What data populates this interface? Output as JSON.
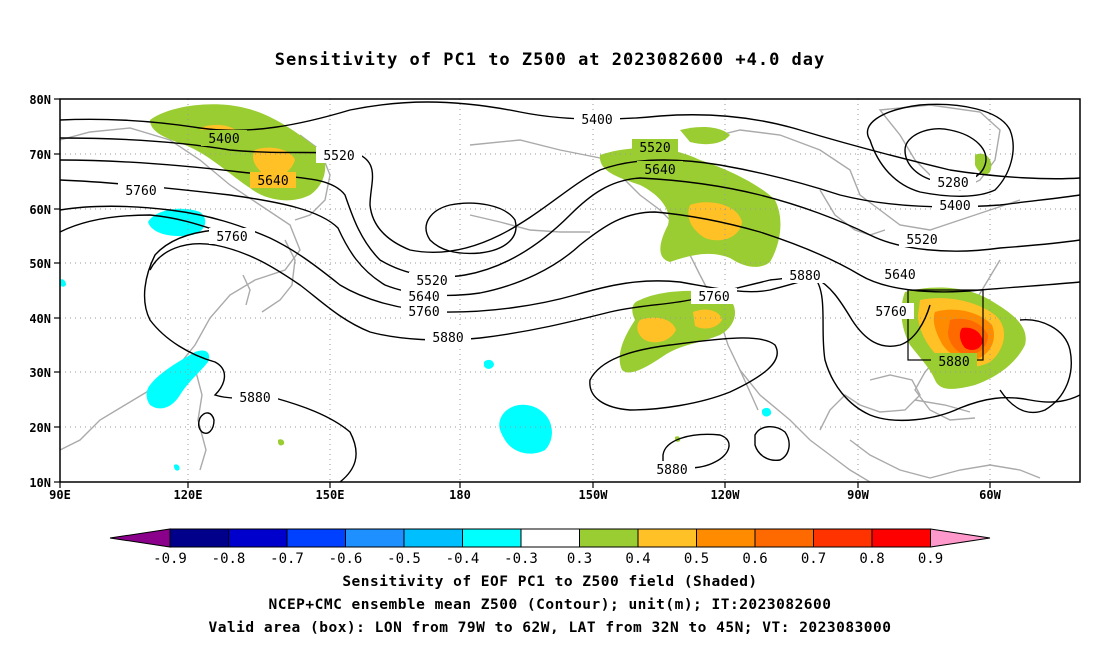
{
  "title": "Sensitivity of PC1 to Z500 at 2023082600 +4.0 day",
  "map": {
    "lon_labels": [
      "90E",
      "120E",
      "150E",
      "180",
      "150W",
      "120W",
      "90W",
      "60W"
    ],
    "lat_labels": [
      "80N",
      "70N",
      "60N",
      "50N",
      "40N",
      "30N",
      "20N",
      "10N"
    ],
    "extent": {
      "lon_min": 90,
      "lon_max": 330,
      "lat_min": 10,
      "lat_max": 80
    },
    "contour_labels": [
      "5400",
      "5520",
      "5640",
      "5760",
      "5760",
      "5400",
      "5520",
      "5640",
      "5280",
      "5400",
      "5520",
      "5640",
      "5760",
      "5880",
      "5520",
      "5640",
      "5760",
      "5760",
      "5880",
      "5880",
      "5880",
      "5880"
    ],
    "valid_box": {
      "lon_w": -79,
      "lon_e": -62,
      "lat_s": 32,
      "lat_n": 45
    },
    "colors": {
      "positive_weak": "#9ACD32",
      "positive_mod": "#FFC125",
      "positive_strong": "#FF8C00",
      "positive_max": "#FF0000",
      "negative_weak": "#00FFFF",
      "coast": "#aaaaaa",
      "grid": "#999999"
    }
  },
  "colorbar": {
    "labels": [
      "-0.9",
      "-0.8",
      "-0.7",
      "-0.6",
      "-0.5",
      "-0.4",
      "-0.3",
      "0.3",
      "0.4",
      "0.5",
      "0.6",
      "0.7",
      "0.8",
      "0.9"
    ],
    "colors": [
      "#8B008B",
      "#00008B",
      "#0000CD",
      "#0040FF",
      "#1E90FF",
      "#00BFFF",
      "#00FFFF",
      "#FFFFFF",
      "#9ACD32",
      "#FFC125",
      "#FF8C00",
      "#FF6A00",
      "#FF3300",
      "#FF0000",
      "#FF99CC"
    ]
  },
  "captions": {
    "line1": "Sensitivity of EOF PC1 to Z500 field (Shaded)",
    "line2": "NCEP+CMC ensemble mean Z500 (Contour); unit(m); IT:2023082600",
    "line3": "Valid area (box): LON from 79W to 62W, LAT from 32N to 45N; VT: 2023083000"
  }
}
